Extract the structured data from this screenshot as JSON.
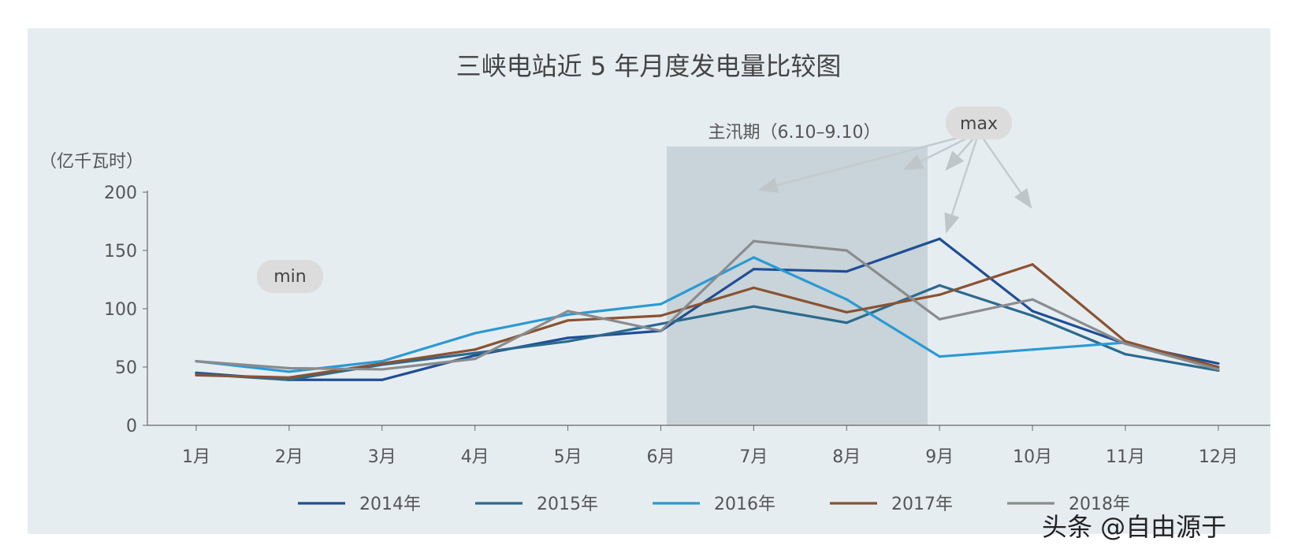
{
  "chart_data": {
    "type": "line",
    "title": "三峡电站近 5 年月度发电量比较图",
    "ylabel": "（亿千瓦时）",
    "ylim": [
      0,
      200
    ],
    "yticks": [
      0,
      50,
      100,
      150,
      200
    ],
    "categories": [
      "1月",
      "2月",
      "3月",
      "4月",
      "5月",
      "6月",
      "7月",
      "8月",
      "9月",
      "10月",
      "11月",
      "12月"
    ],
    "series": [
      {
        "name": "2014年",
        "color": "#1f4e96",
        "values": [
          45,
          39,
          39,
          60,
          75,
          81,
          134,
          132,
          160,
          98,
          70,
          53
        ]
      },
      {
        "name": "2015年",
        "color": "#2b6a8e",
        "values": [
          44,
          39,
          52,
          62,
          72,
          87,
          102,
          88,
          120,
          94,
          61,
          47
        ]
      },
      {
        "name": "2016年",
        "color": "#2a9ad4",
        "values": [
          55,
          46,
          55,
          79,
          95,
          104,
          144,
          108,
          59,
          65,
          71,
          48
        ]
      },
      {
        "name": "2017年",
        "color": "#8a5232",
        "values": [
          43,
          41,
          53,
          65,
          90,
          94,
          118,
          97,
          112,
          138,
          72,
          50
        ]
      },
      {
        "name": "2018年",
        "color": "#8a8c8e",
        "values": [
          55,
          49,
          48,
          57,
          98,
          81,
          158,
          150,
          91,
          108,
          70,
          48
        ]
      }
    ],
    "shaded_region": {
      "label": "主汛期（6.10–9.10）",
      "from_month": 6.1,
      "to_month": 9.1,
      "color": "#c8d4d9"
    },
    "annotations": {
      "max": "max",
      "min": "min"
    },
    "background": "#e6edf1",
    "legend": "bottom",
    "grid": false
  },
  "watermark": "头条 @自由源于"
}
